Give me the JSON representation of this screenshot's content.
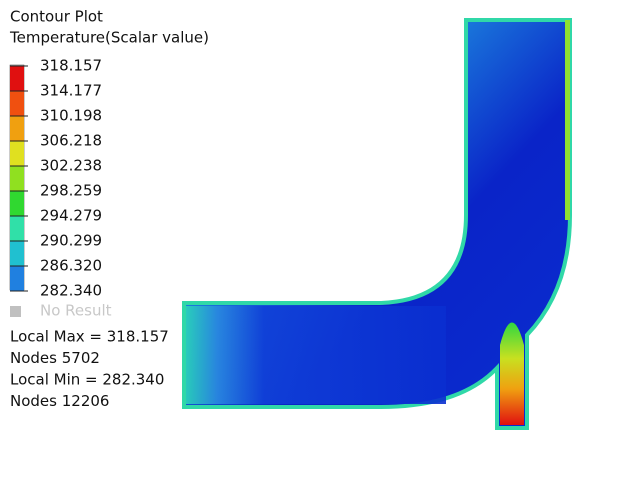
{
  "header": {
    "title": "Contour Plot",
    "subtitle": "Temperature(Scalar value)"
  },
  "legend": {
    "labels": [
      "318.157",
      "314.177",
      "310.198",
      "306.218",
      "302.238",
      "298.259",
      "294.279",
      "290.299",
      "286.320",
      "282.340"
    ],
    "no_result": "No Result"
  },
  "stats": [
    "Local Max = 318.157",
    "Nodes 5702",
    "Local Min = 282.340",
    "Nodes 12206"
  ]
}
